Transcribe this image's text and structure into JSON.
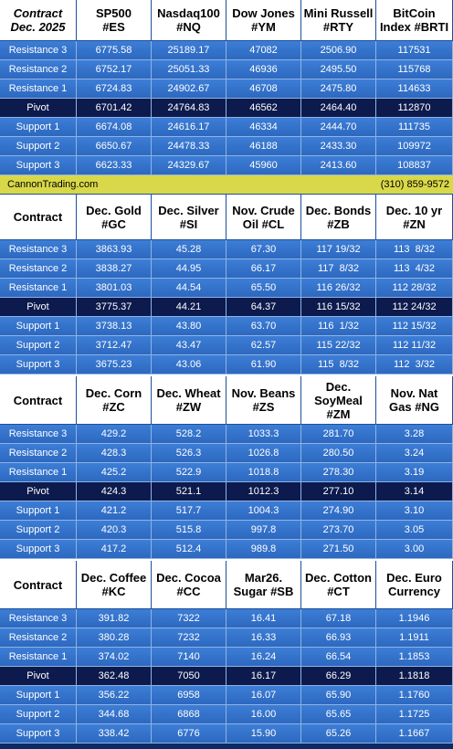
{
  "banner": {
    "site": "CannonTrading.com",
    "phone": "(310) 859-9572"
  },
  "colors": {
    "level_row": "#3470c8",
    "pivot_row": "#0c1a4d",
    "banner": "#d8d84a"
  },
  "row_labels": [
    "Resistance 3",
    "Resistance 2",
    "Resistance 1",
    "Pivot",
    "Support 1",
    "Support 2",
    "Support 3"
  ],
  "tables": [
    {
      "headers": [
        [
          "Contract",
          "Dec. 2025"
        ],
        [
          "SP500",
          "#ES"
        ],
        [
          "Nasdaq100",
          "#NQ"
        ],
        [
          "Dow Jones",
          "#YM"
        ],
        [
          "Mini Russell",
          "#RTY"
        ],
        [
          "BitCoin",
          "Index #BRTI"
        ]
      ],
      "rows": [
        [
          "6775.58",
          "25189.17",
          "47082",
          "2506.90",
          "117531"
        ],
        [
          "6752.17",
          "25051.33",
          "46936",
          "2495.50",
          "115768"
        ],
        [
          "6724.83",
          "24902.67",
          "46708",
          "2475.80",
          "114633"
        ],
        [
          "6701.42",
          "24764.83",
          "46562",
          "2464.40",
          "112870"
        ],
        [
          "6674.08",
          "24616.17",
          "46334",
          "2444.70",
          "111735"
        ],
        [
          "6650.67",
          "24478.33",
          "46188",
          "2433.30",
          "109972"
        ],
        [
          "6623.33",
          "24329.67",
          "45960",
          "2413.60",
          "108837"
        ]
      ]
    },
    {
      "headers": [
        [
          "Contract"
        ],
        [
          "Dec. Gold",
          "#GC"
        ],
        [
          "Dec. Silver",
          "#SI"
        ],
        [
          "Nov. Crude",
          "Oil #CL"
        ],
        [
          "Dec. Bonds",
          "#ZB"
        ],
        [
          "Dec. 10 yr",
          "#ZN"
        ]
      ],
      "rows": [
        [
          "3863.93",
          "45.28",
          "67.30",
          "117 19/32",
          "113  8/32"
        ],
        [
          "3838.27",
          "44.95",
          "66.17",
          "117  8/32",
          "113  4/32"
        ],
        [
          "3801.03",
          "44.54",
          "65.50",
          "116 26/32",
          "112 28/32"
        ],
        [
          "3775.37",
          "44.21",
          "64.37",
          "116 15/32",
          "112 24/32"
        ],
        [
          "3738.13",
          "43.80",
          "63.70",
          "116  1/32",
          "112 15/32"
        ],
        [
          "3712.47",
          "43.47",
          "62.57",
          "115 22/32",
          "112 11/32"
        ],
        [
          "3675.23",
          "43.06",
          "61.90",
          "115  8/32",
          "112  3/32"
        ]
      ]
    },
    {
      "headers": [
        [
          "Contract"
        ],
        [
          "Dec. Corn",
          "#ZC"
        ],
        [
          "Dec.  Wheat",
          "#ZW"
        ],
        [
          "Nov. Beans",
          "#ZS"
        ],
        [
          "Dec.",
          "SoyMeal",
          "#ZM"
        ],
        [
          "Nov. Nat",
          "Gas #NG"
        ]
      ],
      "rows": [
        [
          "429.2",
          "528.2",
          "1033.3",
          "281.70",
          "3.28"
        ],
        [
          "428.3",
          "526.3",
          "1026.8",
          "280.50",
          "3.24"
        ],
        [
          "425.2",
          "522.9",
          "1018.8",
          "278.30",
          "3.19"
        ],
        [
          "424.3",
          "521.1",
          "1012.3",
          "277.10",
          "3.14"
        ],
        [
          "421.2",
          "517.7",
          "1004.3",
          "274.90",
          "3.10"
        ],
        [
          "420.3",
          "515.8",
          "997.8",
          "273.70",
          "3.05"
        ],
        [
          "417.2",
          "512.4",
          "989.8",
          "271.50",
          "3.00"
        ]
      ]
    },
    {
      "headers": [
        [
          "Contract"
        ],
        [
          "Dec. Coffee",
          "#KC"
        ],
        [
          "Dec. Cocoa",
          "#CC"
        ],
        [
          "Mar26.",
          "Sugar #SB"
        ],
        [
          "Dec. Cotton",
          "#CT"
        ],
        [
          "Dec. Euro",
          "Currency"
        ]
      ],
      "rows": [
        [
          "391.82",
          "7322",
          "16.41",
          "67.18",
          "1.1946"
        ],
        [
          "380.28",
          "7232",
          "16.33",
          "66.93",
          "1.1911"
        ],
        [
          "374.02",
          "7140",
          "16.24",
          "66.54",
          "1.1853"
        ],
        [
          "362.48",
          "7050",
          "16.17",
          "66.29",
          "1.1818"
        ],
        [
          "356.22",
          "6958",
          "16.07",
          "65.90",
          "1.1760"
        ],
        [
          "344.68",
          "6868",
          "16.00",
          "65.65",
          "1.1725"
        ],
        [
          "338.42",
          "6776",
          "15.90",
          "65.26",
          "1.1667"
        ]
      ]
    }
  ]
}
